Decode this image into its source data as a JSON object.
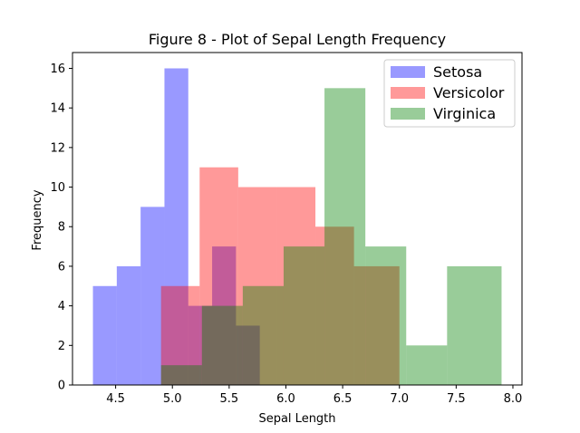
{
  "chart_data": {
    "type": "bar",
    "title": "Figure 8 - Plot of Sepal Length Frequency",
    "xlabel": "Sepal Length",
    "ylabel": "Frequency",
    "xlim": [
      4.12,
      8.08
    ],
    "ylim": [
      0,
      16.8
    ],
    "xticks": [
      4.5,
      5.0,
      5.5,
      6.0,
      6.5,
      7.0,
      7.5,
      8.0
    ],
    "xtick_labels": [
      "4.5",
      "5.0",
      "5.5",
      "6.0",
      "6.5",
      "7.0",
      "7.5",
      "8.0"
    ],
    "yticks": [
      0,
      2,
      4,
      6,
      8,
      10,
      12,
      14,
      16
    ],
    "ytick_labels": [
      "0",
      "2",
      "4",
      "6",
      "8",
      "10",
      "12",
      "14",
      "16"
    ],
    "grid": false,
    "legend_position": "top-right",
    "series": [
      {
        "name": "Setosa",
        "color": "#0000ff",
        "opacity": 0.4,
        "bin_edges": [
          4.3,
          4.51,
          4.72,
          4.93,
          5.14,
          5.35,
          5.56,
          5.77
        ],
        "values": [
          5,
          6,
          9,
          16,
          4,
          7,
          3
        ]
      },
      {
        "name": "Versicolor",
        "color": "#ff0000",
        "opacity": 0.4,
        "bin_edges": [
          4.9,
          5.24,
          5.58,
          5.92,
          6.26,
          6.6,
          7.0
        ],
        "values": [
          5,
          11,
          10,
          10,
          8,
          6
        ]
      },
      {
        "name": "Virginica",
        "color": "#008000",
        "opacity": 0.4,
        "bin_edges": [
          4.9,
          5.26,
          5.62,
          5.98,
          6.34,
          6.7,
          7.06,
          7.42,
          7.9
        ],
        "values": [
          1,
          4,
          5,
          7,
          15,
          7,
          2,
          6
        ]
      }
    ]
  }
}
